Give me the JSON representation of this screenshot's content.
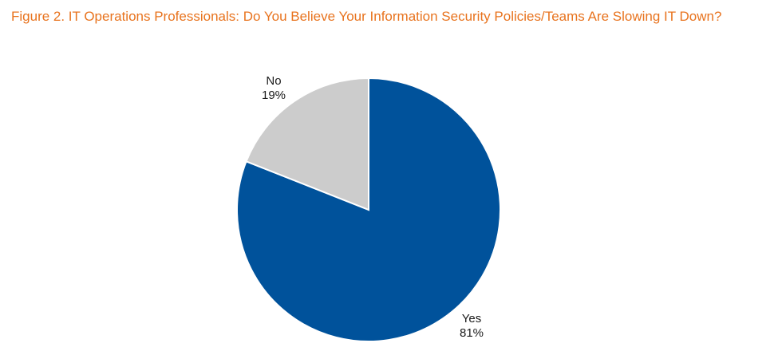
{
  "chart_data": {
    "type": "pie",
    "title": "Figure 2. IT Operations Professionals: Do You Believe Your Information Security Policies/Teams Are Slowing IT Down?",
    "slices": [
      {
        "label": "Yes",
        "value": 81,
        "value_label": "81%",
        "color": "#00529b"
      },
      {
        "label": "No",
        "value": 19,
        "value_label": "19%",
        "color": "#cccccc"
      }
    ],
    "start_angle_deg": 0,
    "direction": "clockwise",
    "slice_border_color": "#ffffff",
    "title_color": "#e8731e"
  }
}
